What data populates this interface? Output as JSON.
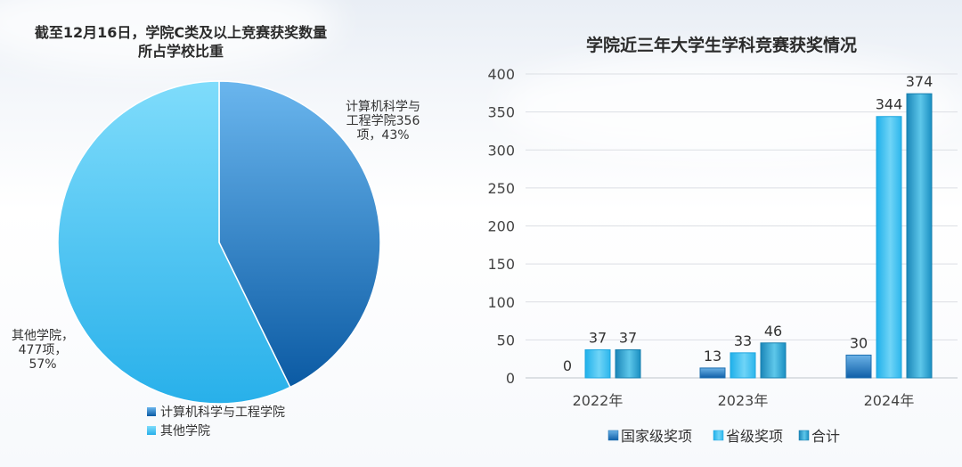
{
  "colors": {
    "dark_blue": "#2f86c8",
    "light_blue": "#3fbdf0",
    "teal_blue": "#1f95c5"
  },
  "chart_data": [
    {
      "type": "pie",
      "title": "截至12月16日，学院C类及以上竞赛获奖数量所占学校比重",
      "title_lines": [
        "截至12月16日，学院C类及以上竞赛获奖数量",
        "所占学校比重"
      ],
      "slices": [
        {
          "name": "计算机科学与工程学院",
          "value": 356,
          "percent": "43%",
          "label_lines": [
            "计算机科学与",
            "工程学院356",
            "项，43%"
          ],
          "color": "#2f86c8"
        },
        {
          "name": "其他学院",
          "value": 477,
          "percent": "57%",
          "label_lines": [
            "其他学院，",
            "477项，",
            "57%"
          ],
          "color": "#3fbdf0"
        }
      ],
      "legend": [
        "计算机科学与工程学院",
        "其他学院"
      ],
      "legend_position": "bottom"
    },
    {
      "type": "bar",
      "title": "学院近三年大学生学科竞赛获奖情况",
      "categories": [
        "2022年",
        "2023年",
        "2024年"
      ],
      "series": [
        {
          "name": "国家级奖项",
          "values": [
            0,
            13,
            30
          ],
          "color": "#2f86c8"
        },
        {
          "name": "省级奖项",
          "values": [
            37,
            33,
            344
          ],
          "color": "#3fbdf0"
        },
        {
          "name": "合计",
          "values": [
            37,
            46,
            374
          ],
          "color": "#1f95c5"
        }
      ],
      "ylim": [
        0,
        400
      ],
      "yticks": [
        0,
        50,
        100,
        150,
        200,
        250,
        300,
        350,
        400
      ],
      "grid": true,
      "legend_position": "bottom"
    }
  ]
}
